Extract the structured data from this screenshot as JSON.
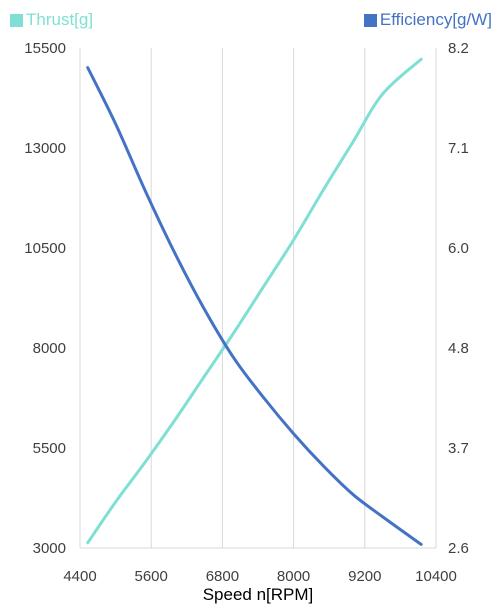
{
  "chart_data": {
    "type": "line",
    "xlabel": "Speed n[RPM]",
    "x_ticks": [
      "4400",
      "5600",
      "6800",
      "8000",
      "9200",
      "10400"
    ],
    "xlim": [
      4400,
      10400
    ],
    "y_left_ticks": [
      "15500",
      "13000",
      "10500",
      "8000",
      "5500",
      "3000"
    ],
    "ylim_left": [
      3000,
      15500
    ],
    "y_right_ticks": [
      "8.2",
      "7.1",
      "6.0",
      "4.8",
      "3.7",
      "2.6"
    ],
    "ylim_right": [
      2.6,
      8.2
    ],
    "grid": "vertical",
    "series": [
      {
        "name": "Thrust[g]",
        "axis": "left",
        "color": "#7fdfd4",
        "x": [
          4530,
          5000,
          5500,
          6000,
          6500,
          7000,
          7500,
          8000,
          8500,
          9000,
          9500,
          10150
        ],
        "y": [
          3130,
          4150,
          5150,
          6200,
          7300,
          8400,
          9550,
          10700,
          11950,
          13150,
          14350,
          15220
        ]
      },
      {
        "name": "Efficiency[g/W]",
        "axis": "right",
        "color": "#4472c4",
        "x": [
          4530,
          5000,
          5500,
          6000,
          6500,
          7000,
          7500,
          8000,
          8500,
          9000,
          9500,
          10150
        ],
        "y": [
          7.98,
          7.35,
          6.6,
          5.9,
          5.27,
          4.72,
          4.28,
          3.88,
          3.52,
          3.2,
          2.95,
          2.64
        ]
      }
    ]
  }
}
